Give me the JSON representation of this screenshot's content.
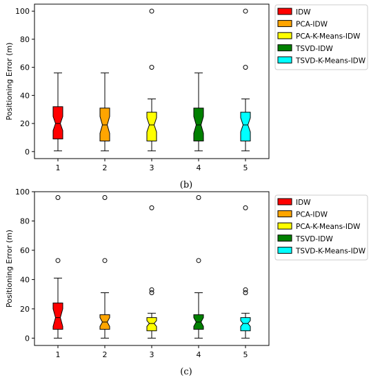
{
  "chart_data": [
    {
      "type": "box",
      "panel_label": "(b)",
      "ylabel": "Positioning Error (m)",
      "xlabel": "",
      "categories": [
        "1",
        "2",
        "3",
        "4",
        "5"
      ],
      "ylim": [
        -5,
        105
      ],
      "yticks": [
        0,
        20,
        40,
        60,
        80,
        100
      ],
      "notched": true,
      "grid": false,
      "legend_position": "outside-right-top",
      "series": [
        {
          "name": "IDW",
          "color": "#ff0000",
          "whisker_low": 0.5,
          "q1": 9,
          "median": 20,
          "notch_low": 15,
          "notch_high": 25,
          "q3": 32,
          "whisker_high": 56,
          "outliers": []
        },
        {
          "name": "PCA-IDW",
          "color": "#ffa500",
          "whisker_low": 0.5,
          "q1": 7.5,
          "median": 19,
          "notch_low": 13,
          "notch_high": 25,
          "q3": 31,
          "whisker_high": 56,
          "outliers": []
        },
        {
          "name": "PCA-K-Means-IDW",
          "color": "#ffff00",
          "whisker_low": 0.5,
          "q1": 7.5,
          "median": 19,
          "notch_low": 14,
          "notch_high": 24,
          "q3": 28,
          "whisker_high": 37.5,
          "outliers": [
            60,
            100
          ]
        },
        {
          "name": "TSVD-IDW",
          "color": "#008000",
          "whisker_low": 0.5,
          "q1": 7.5,
          "median": 19,
          "notch_low": 13,
          "notch_high": 25,
          "q3": 31,
          "whisker_high": 56,
          "outliers": []
        },
        {
          "name": "TSVD-K-Means-IDW",
          "color": "#00ffff",
          "whisker_low": 0.5,
          "q1": 7.5,
          "median": 19,
          "notch_low": 14,
          "notch_high": 24,
          "q3": 28,
          "whisker_high": 37.5,
          "outliers": [
            60,
            100
          ]
        }
      ]
    },
    {
      "type": "box",
      "panel_label": "(c)",
      "ylabel": "Positioning Error (m)",
      "xlabel": "",
      "categories": [
        "1",
        "2",
        "3",
        "4",
        "5"
      ],
      "ylim": [
        -5,
        100
      ],
      "yticks": [
        0,
        20,
        40,
        60,
        80,
        100
      ],
      "notched": true,
      "grid": false,
      "legend_position": "outside-right-top",
      "series": [
        {
          "name": "IDW",
          "color": "#ff0000",
          "whisker_low": 0,
          "q1": 6,
          "median": 14,
          "notch_low": 8,
          "notch_high": 20,
          "q3": 24,
          "whisker_high": 41,
          "outliers": [
            53,
            96
          ]
        },
        {
          "name": "PCA-IDW",
          "color": "#ffa500",
          "whisker_low": 0,
          "q1": 6,
          "median": 11,
          "notch_low": 8,
          "notch_high": 14,
          "q3": 16,
          "whisker_high": 31,
          "outliers": [
            53,
            96
          ]
        },
        {
          "name": "PCA-K-Means-IDW",
          "color": "#ffff00",
          "whisker_low": 0,
          "q1": 5,
          "median": 10,
          "notch_low": 8,
          "notch_high": 12,
          "q3": 14,
          "whisker_high": 17,
          "outliers": [
            31,
            33,
            89
          ]
        },
        {
          "name": "TSVD-IDW",
          "color": "#008000",
          "whisker_low": 0,
          "q1": 6,
          "median": 11,
          "notch_low": 8,
          "notch_high": 14,
          "q3": 16,
          "whisker_high": 31,
          "outliers": [
            53,
            96
          ]
        },
        {
          "name": "TSVD-K-Means-IDW",
          "color": "#00ffff",
          "whisker_low": 0,
          "q1": 5,
          "median": 10,
          "notch_low": 8,
          "notch_high": 12,
          "q3": 14,
          "whisker_high": 17,
          "outliers": [
            31,
            33,
            89
          ]
        }
      ]
    }
  ]
}
